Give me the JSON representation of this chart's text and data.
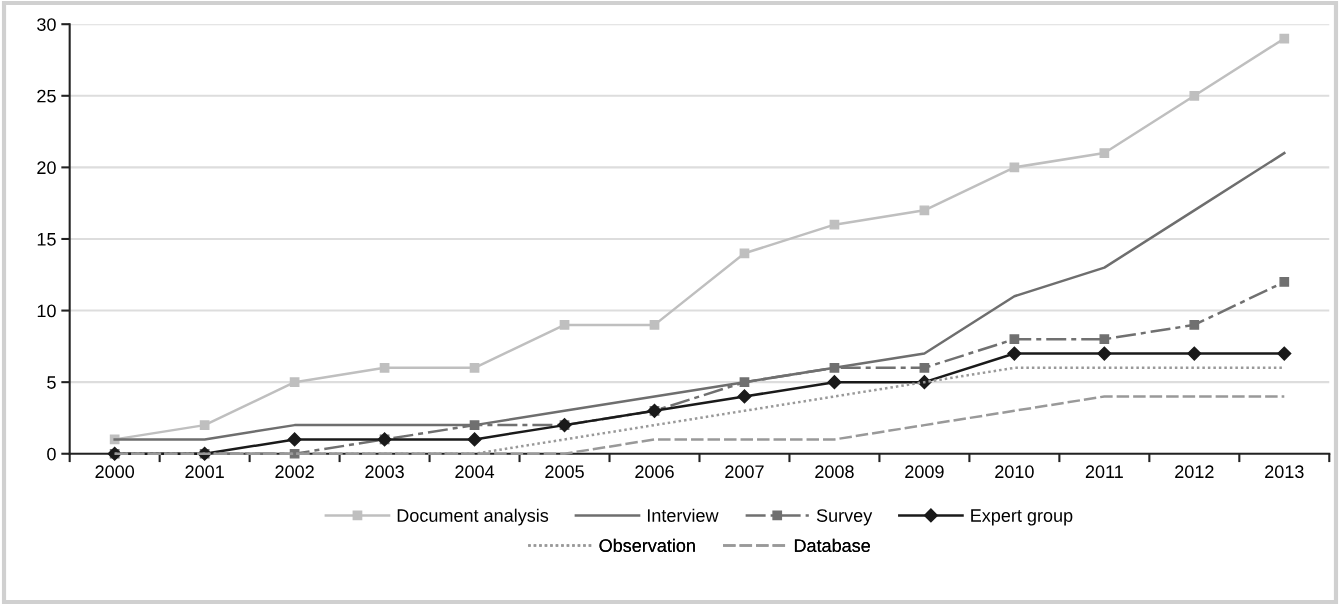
{
  "chart_data": {
    "type": "line",
    "categories": [
      "2000",
      "2001",
      "2002",
      "2003",
      "2004",
      "2005",
      "2006",
      "2007",
      "2008",
      "2009",
      "2010",
      "2011",
      "2012",
      "2013"
    ],
    "ylim": [
      0,
      30
    ],
    "yticks": [
      0,
      5,
      10,
      15,
      20,
      25,
      30
    ],
    "grid": "y",
    "legend": "bottom",
    "series": [
      {
        "name": "Document analysis",
        "color": "#bfbfbf",
        "marker": "square",
        "line_style": "solid",
        "values": [
          1,
          2,
          5,
          6,
          6,
          9,
          9,
          14,
          16,
          17,
          20,
          21,
          25,
          29
        ]
      },
      {
        "name": "Interview",
        "color": "#6e6e6e",
        "marker": "none",
        "line_style": "solid",
        "values": [
          1,
          1,
          2,
          2,
          2,
          3,
          4,
          5,
          6,
          7,
          11,
          13,
          17,
          21
        ]
      },
      {
        "name": "Survey",
        "color": "#707070",
        "marker": "square",
        "line_style": "dashdot",
        "values": [
          0,
          0,
          0,
          1,
          2,
          2,
          3,
          5,
          6,
          6,
          8,
          8,
          9,
          12
        ]
      },
      {
        "name": "Expert group",
        "color": "#1a1a1a",
        "marker": "diamond",
        "line_style": "solid",
        "values": [
          0,
          0,
          1,
          1,
          1,
          2,
          3,
          4,
          5,
          5,
          7,
          7,
          7,
          7
        ]
      },
      {
        "name": "Observation",
        "color": "#999999",
        "marker": "none",
        "line_style": "dotted",
        "values": [
          0,
          0,
          0,
          0,
          0,
          1,
          2,
          3,
          4,
          5,
          6,
          6,
          6,
          6
        ]
      },
      {
        "name": "Database",
        "color": "#999999",
        "marker": "none",
        "line_style": "dashed",
        "values": [
          0,
          0,
          0,
          0,
          0,
          0,
          1,
          1,
          1,
          2,
          3,
          4,
          4,
          4
        ]
      }
    ]
  }
}
